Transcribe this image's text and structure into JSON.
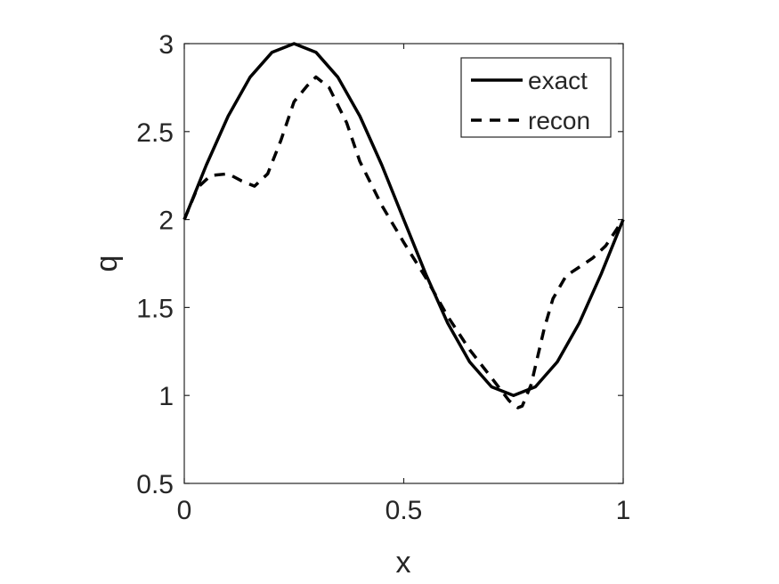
{
  "chart_data": {
    "type": "line",
    "title": "",
    "xlabel": "x",
    "ylabel": "q",
    "xlim": [
      0,
      1
    ],
    "ylim": [
      0.5,
      3
    ],
    "xticks": [
      0,
      0.5,
      1
    ],
    "xtick_labels": [
      "0",
      "0.5",
      "1"
    ],
    "yticks": [
      0.5,
      1,
      1.5,
      2,
      2.5,
      3
    ],
    "ytick_labels": [
      "0.5",
      "1",
      "1.5",
      "2",
      "2.5",
      "3"
    ],
    "grid": false,
    "legend_position": "top-right",
    "series": [
      {
        "name": "exact",
        "style": "solid",
        "color": "#000000",
        "x": [
          0,
          0.05,
          0.1,
          0.15,
          0.2,
          0.25,
          0.3,
          0.35,
          0.4,
          0.45,
          0.5,
          0.55,
          0.6,
          0.65,
          0.7,
          0.75,
          0.8,
          0.85,
          0.9,
          0.95,
          1
        ],
        "y": [
          2,
          2.309,
          2.588,
          2.809,
          2.951,
          3,
          2.951,
          2.809,
          2.588,
          2.309,
          2,
          1.691,
          1.412,
          1.191,
          1.049,
          1,
          1.049,
          1.191,
          1.412,
          1.691,
          2
        ]
      },
      {
        "name": "recon",
        "style": "dashed",
        "color": "#000000",
        "x": [
          0,
          0.03,
          0.06,
          0.1,
          0.13,
          0.16,
          0.19,
          0.22,
          0.25,
          0.28,
          0.3,
          0.33,
          0.37,
          0.4,
          0.45,
          0.5,
          0.55,
          0.6,
          0.65,
          0.7,
          0.74,
          0.76,
          0.77,
          0.79,
          0.82,
          0.84,
          0.87,
          0.9,
          0.93,
          0.96,
          1
        ],
        "y": [
          2,
          2.18,
          2.25,
          2.26,
          2.22,
          2.19,
          2.26,
          2.45,
          2.67,
          2.76,
          2.81,
          2.75,
          2.55,
          2.33,
          2.08,
          1.87,
          1.67,
          1.45,
          1.26,
          1.1,
          0.97,
          0.93,
          0.94,
          1.06,
          1.38,
          1.55,
          1.68,
          1.73,
          1.78,
          1.85,
          2
        ]
      }
    ]
  }
}
